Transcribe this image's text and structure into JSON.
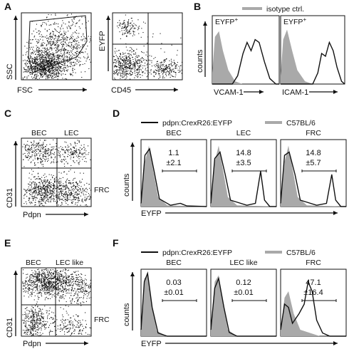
{
  "panels": {
    "A": {
      "letter": "A",
      "left_xlabel": "FSC",
      "left_ylabel": "SSC",
      "right_xlabel": "CD45",
      "right_ylabel": "EYFP"
    },
    "B": {
      "letter": "B",
      "legend": "isotype ctrl.",
      "left_title": "EYFP",
      "left_title_sup": "+",
      "right_title": "EYFP",
      "right_title_sup": "+",
      "ylabel": "counts",
      "left_xlabel": "VCAM-1",
      "right_xlabel": "ICAM-1"
    },
    "C": {
      "letter": "C",
      "gate_top_left": "BEC",
      "gate_top_right": "LEC",
      "gate_bottom_right": "FRC",
      "xlabel": "Pdpn",
      "ylabel": "CD31"
    },
    "D": {
      "letter": "D",
      "legend_black": "pdpn:CrexR26:EYFP",
      "legend_gray": "C57BL/6",
      "ylabel": "counts",
      "xlabel": "EYFP",
      "subpanels": [
        {
          "title": "BEC",
          "value": "1.1",
          "err": "±2.1"
        },
        {
          "title": "LEC",
          "value": "14.8",
          "err": "±3.5"
        },
        {
          "title": "FRC",
          "value": "14.8",
          "err": "±5.7"
        }
      ]
    },
    "E": {
      "letter": "E",
      "gate_top_left": "BEC",
      "gate_top_right": "LEC like",
      "gate_bottom_right": "FRC",
      "xlabel": "Pdpn",
      "ylabel": "CD31"
    },
    "F": {
      "letter": "F",
      "legend_black": "pdpn:CrexR26:EYFP",
      "legend_gray": "C57BL/6",
      "ylabel": "counts",
      "xlabel": "EYFP",
      "subpanels": [
        {
          "title": "BEC",
          "value": "0.03",
          "err": "±0.01"
        },
        {
          "title": "LEC like",
          "value": "0.12",
          "err": "±0.01"
        },
        {
          "title": "FRC",
          "value": "47.1",
          "err": "±16.4"
        }
      ]
    }
  },
  "colors": {
    "black_line": "#111111",
    "gray_fill": "#a9a9a9",
    "dots": "#111111"
  }
}
